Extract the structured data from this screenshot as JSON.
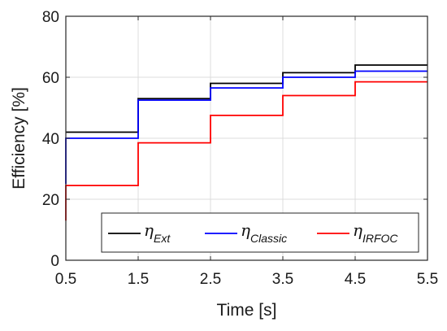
{
  "chart_data": {
    "type": "line",
    "step": true,
    "title": "",
    "xlabel": "Time [s]",
    "ylabel": "Efficiency [%]",
    "xlim": [
      0.5,
      5.5
    ],
    "ylim": [
      0,
      80
    ],
    "xticks": [
      "0.5",
      "1.5",
      "2.5",
      "3.5",
      "4.5",
      "5.5"
    ],
    "yticks": [
      "0",
      "20",
      "40",
      "60",
      "80"
    ],
    "grid": true,
    "legend_position": "bottom",
    "series": [
      {
        "name_symbol": "η",
        "name_sub": "Ext",
        "color": "#000000",
        "x": [
          0.5,
          1.5,
          1.5,
          2.5,
          2.5,
          3.5,
          3.5,
          4.5,
          4.5,
          5.5
        ],
        "y": [
          42,
          42,
          53,
          53,
          58,
          58,
          61.5,
          61.5,
          64,
          64
        ]
      },
      {
        "name_symbol": "η",
        "name_sub": "Classic",
        "color": "#0000ff",
        "x": [
          0.5,
          0.5,
          1.5,
          1.5,
          2.5,
          2.5,
          3.5,
          3.5,
          4.5,
          4.5,
          5.5
        ],
        "y": [
          25,
          40,
          40,
          52.5,
          52.5,
          56.5,
          56.5,
          60,
          60,
          62,
          62
        ]
      },
      {
        "name_symbol": "η",
        "name_sub": "IRFOC",
        "color": "#ff0000",
        "x": [
          0.5,
          0.5,
          1.5,
          1.5,
          2.5,
          2.5,
          3.5,
          3.5,
          4.5,
          4.5,
          5.5
        ],
        "y": [
          13,
          24.5,
          24.5,
          38.5,
          38.5,
          47.5,
          47.5,
          54,
          54,
          58.5,
          58.5
        ]
      }
    ]
  }
}
